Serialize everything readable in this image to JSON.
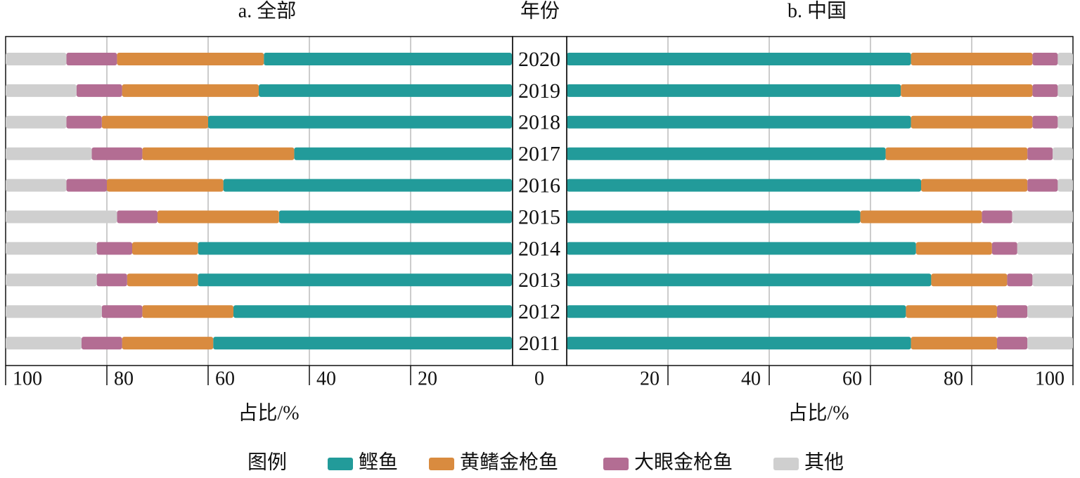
{
  "year_axis": {
    "title": "年份",
    "categories": [
      "2020",
      "2019",
      "2018",
      "2017",
      "2016",
      "2015",
      "2014",
      "2013",
      "2012",
      "2011"
    ]
  },
  "legend": {
    "title": "图例"
  },
  "chart_data": [
    {
      "type": "bar",
      "title": "a. 全部",
      "xlabel": "占比/%",
      "xlim": [
        0,
        100
      ],
      "xticks": [
        0,
        20,
        40,
        60,
        80,
        100
      ],
      "grid": true,
      "stacked": true,
      "reversed": true,
      "series": [
        {
          "name": "鲣鱼",
          "color": "#229b9a",
          "values": [
            49,
            50,
            60,
            43,
            57,
            46,
            62,
            62,
            55,
            59
          ]
        },
        {
          "name": "黄鳍金枪鱼",
          "color": "#d98b3f",
          "values": [
            29,
            27,
            21,
            30,
            23,
            24,
            13,
            14,
            18,
            18
          ]
        },
        {
          "name": "大眼金枪鱼",
          "color": "#b36d93",
          "values": [
            10,
            9,
            7,
            10,
            8,
            8,
            7,
            6,
            8,
            8
          ]
        },
        {
          "name": "其他",
          "color": "#cfcfcf",
          "values": [
            12,
            14,
            12,
            17,
            12,
            22,
            18,
            18,
            19,
            15
          ]
        }
      ]
    },
    {
      "type": "bar",
      "title": "b. 中国",
      "xlabel": "占比/%",
      "xlim": [
        0,
        100
      ],
      "xticks": [
        20,
        40,
        60,
        80,
        100
      ],
      "grid": true,
      "stacked": true,
      "reversed": false,
      "series": [
        {
          "values": [
            68,
            66,
            68,
            63,
            70,
            58,
            69,
            72,
            67,
            68
          ]
        },
        {
          "values": [
            24,
            26,
            24,
            28,
            21,
            24,
            15,
            15,
            18,
            17
          ]
        },
        {
          "values": [
            5,
            5,
            5,
            5,
            6,
            6,
            5,
            5,
            6,
            6
          ]
        },
        {
          "values": [
            3,
            3,
            3,
            4,
            3,
            12,
            11,
            8,
            9,
            9
          ]
        }
      ]
    }
  ]
}
